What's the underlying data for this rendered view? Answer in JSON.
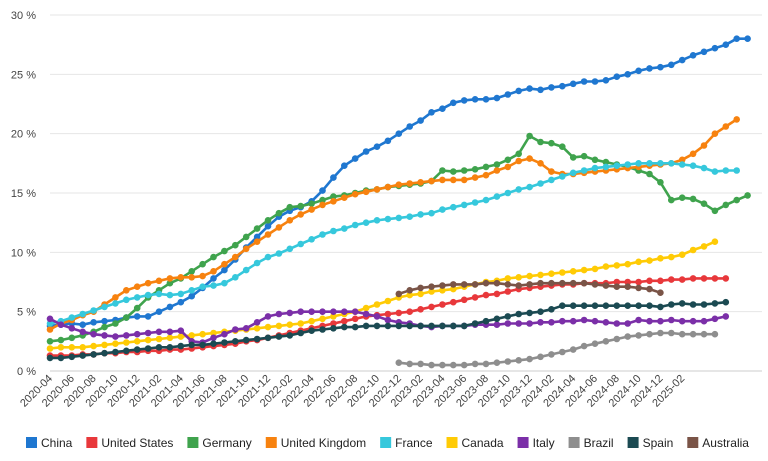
{
  "chart_data": {
    "type": "line",
    "title": "",
    "xlabel": "",
    "ylabel": "",
    "ylim": [
      0,
      30
    ],
    "y_ticks": [
      "0 %",
      "5 %",
      "10 %",
      "15 %",
      "20 %",
      "25 %",
      "30 %"
    ],
    "x_tick_labels": [
      "2020-04",
      "2020-06",
      "2020-08",
      "2020-10",
      "2020-12",
      "2021-02",
      "2021-04",
      "2021-06",
      "2021-08",
      "2021-10",
      "2021-12",
      "2022-02",
      "2022-04",
      "2022-06",
      "2022-08",
      "2022-10",
      "2022-12",
      "2023-02",
      "2023-04",
      "2023-06",
      "2023-08",
      "2023-10",
      "2023-12",
      "2024-02",
      "2024-04",
      "2024-06",
      "2024-08",
      "2024-10",
      "2024-12",
      "2025-02"
    ],
    "grid": "horizontal",
    "legend_position": "bottom",
    "series": [
      {
        "name": "China",
        "color": "#1f77d0",
        "start": "2020-04",
        "values": [
          3.8,
          3.9,
          4.0,
          3.9,
          4.1,
          4.2,
          4.3,
          4.5,
          4.6,
          4.6,
          5.0,
          5.4,
          5.8,
          6.3,
          7.0,
          7.8,
          8.5,
          9.4,
          10.4,
          11.3,
          12.2,
          13.0,
          13.5,
          13.8,
          14.3,
          15.2,
          16.3,
          17.3,
          17.9,
          18.5,
          18.9,
          19.4,
          20.0,
          20.6,
          21.1,
          21.8,
          22.1,
          22.6,
          22.8,
          22.9,
          22.9,
          23.0,
          23.3,
          23.6,
          23.8,
          23.7,
          23.9,
          24.0,
          24.2,
          24.4,
          24.4,
          24.5,
          24.8,
          25.0,
          25.3,
          25.5,
          25.6,
          25.8,
          26.2,
          26.6,
          26.9,
          27.2,
          27.5,
          28.0,
          28.0
        ]
      },
      {
        "name": "United States",
        "color": "#e8383b",
        "start": "2020-04",
        "values": [
          1.3,
          1.3,
          1.3,
          1.4,
          1.4,
          1.5,
          1.5,
          1.6,
          1.6,
          1.7,
          1.7,
          1.8,
          1.8,
          1.9,
          2.0,
          2.1,
          2.2,
          2.3,
          2.5,
          2.6,
          2.8,
          3.0,
          3.2,
          3.4,
          3.6,
          3.8,
          4.0,
          4.2,
          4.4,
          4.6,
          4.7,
          4.8,
          4.9,
          5.0,
          5.2,
          5.4,
          5.6,
          5.8,
          6.0,
          6.2,
          6.4,
          6.5,
          6.7,
          6.9,
          7.0,
          7.1,
          7.2,
          7.3,
          7.3,
          7.4,
          7.4,
          7.4,
          7.5,
          7.5,
          7.5,
          7.6,
          7.6,
          7.7,
          7.7,
          7.8,
          7.8,
          7.8,
          7.8
        ]
      },
      {
        "name": "Germany",
        "color": "#3fa34d",
        "start": "2020-04",
        "values": [
          2.5,
          2.6,
          2.8,
          3.0,
          3.3,
          3.7,
          4.0,
          4.5,
          5.3,
          6.2,
          6.8,
          7.4,
          7.8,
          8.4,
          9.0,
          9.6,
          10.1,
          10.6,
          11.3,
          12.0,
          12.7,
          13.3,
          13.8,
          13.9,
          14.1,
          14.4,
          14.7,
          14.8,
          15.0,
          15.2,
          15.3,
          15.5,
          15.6,
          15.7,
          15.8,
          16.0,
          16.9,
          16.8,
          16.9,
          17.0,
          17.2,
          17.4,
          17.8,
          18.3,
          19.8,
          19.3,
          19.2,
          18.9,
          18.0,
          18.1,
          17.8,
          17.6,
          17.4,
          17.2,
          16.9,
          16.6,
          15.9,
          14.4,
          14.6,
          14.5,
          14.1,
          13.5,
          14.0,
          14.4,
          14.8
        ]
      },
      {
        "name": "United Kingdom",
        "color": "#f7820f",
        "start": "2020-04",
        "values": [
          3.5,
          4.0,
          4.3,
          4.7,
          5.0,
          5.6,
          6.2,
          6.8,
          7.1,
          7.4,
          7.6,
          7.8,
          7.9,
          7.9,
          8.0,
          8.4,
          9.0,
          9.6,
          10.3,
          10.9,
          11.5,
          12.1,
          12.7,
          13.2,
          13.6,
          14.0,
          14.3,
          14.6,
          14.9,
          15.1,
          15.3,
          15.5,
          15.7,
          15.8,
          15.9,
          16.0,
          16.1,
          16.1,
          16.1,
          16.3,
          16.5,
          16.9,
          17.2,
          17.7,
          17.9,
          17.5,
          16.8,
          16.6,
          16.6,
          16.7,
          16.8,
          16.9,
          17.0,
          17.1,
          17.2,
          17.3,
          17.4,
          17.5,
          17.8,
          18.3,
          19.0,
          20.0,
          20.6,
          21.2
        ]
      },
      {
        "name": "France",
        "color": "#36c8dc",
        "start": "2020-04",
        "values": [
          4.0,
          4.2,
          4.5,
          4.8,
          5.1,
          5.4,
          5.7,
          6.0,
          6.2,
          6.4,
          6.5,
          6.4,
          6.5,
          6.8,
          7.1,
          7.2,
          7.4,
          7.9,
          8.5,
          9.1,
          9.6,
          9.9,
          10.3,
          10.7,
          11.1,
          11.5,
          11.8,
          12.0,
          12.3,
          12.5,
          12.7,
          12.8,
          12.9,
          13.0,
          13.2,
          13.3,
          13.6,
          13.8,
          14.0,
          14.2,
          14.4,
          14.7,
          15.0,
          15.3,
          15.5,
          15.8,
          16.1,
          16.4,
          16.7,
          16.9,
          17.1,
          17.2,
          17.3,
          17.4,
          17.5,
          17.5,
          17.5,
          17.5,
          17.4,
          17.3,
          17.1,
          16.8,
          16.9,
          16.9
        ]
      },
      {
        "name": "Canada",
        "color": "#ffcb05",
        "start": "2020-04",
        "values": [
          1.9,
          2.0,
          2.0,
          2.0,
          2.1,
          2.2,
          2.3,
          2.4,
          2.5,
          2.6,
          2.7,
          2.8,
          2.9,
          3.0,
          3.1,
          3.2,
          3.3,
          3.4,
          3.5,
          3.6,
          3.7,
          3.8,
          3.9,
          4.0,
          4.2,
          4.4,
          4.6,
          4.8,
          5.0,
          5.3,
          5.6,
          5.9,
          6.2,
          6.4,
          6.5,
          6.7,
          6.8,
          6.9,
          7.1,
          7.3,
          7.5,
          7.6,
          7.8,
          7.9,
          8.0,
          8.1,
          8.2,
          8.3,
          8.4,
          8.5,
          8.6,
          8.8,
          8.9,
          9.0,
          9.2,
          9.3,
          9.5,
          9.6,
          9.8,
          10.2,
          10.5,
          10.9
        ]
      },
      {
        "name": "Italy",
        "color": "#7b2fa8",
        "start": "2020-04",
        "values": [
          4.4,
          3.9,
          3.6,
          3.3,
          3.1,
          3.0,
          2.9,
          3.0,
          3.1,
          3.2,
          3.3,
          3.3,
          3.4,
          2.5,
          2.4,
          2.8,
          3.1,
          3.5,
          3.6,
          4.1,
          4.6,
          4.8,
          4.9,
          5.0,
          5.0,
          5.0,
          5.0,
          5.0,
          5.0,
          4.8,
          4.6,
          4.3,
          4.1,
          4.0,
          3.8,
          3.7,
          3.8,
          3.8,
          3.8,
          3.9,
          3.9,
          3.9,
          4.0,
          4.0,
          4.0,
          4.1,
          4.1,
          4.2,
          4.2,
          4.3,
          4.2,
          4.1,
          4.0,
          4.0,
          4.3,
          4.2,
          4.2,
          4.3,
          4.2,
          4.2,
          4.2,
          4.4,
          4.6
        ]
      },
      {
        "name": "Brazil",
        "color": "#8e8e8e",
        "start": "2022-12",
        "values": [
          0.7,
          0.6,
          0.6,
          0.5,
          0.5,
          0.5,
          0.5,
          0.6,
          0.6,
          0.7,
          0.8,
          0.9,
          1.0,
          1.2,
          1.4,
          1.6,
          1.8,
          2.1,
          2.3,
          2.5,
          2.7,
          2.9,
          3.0,
          3.1,
          3.2,
          3.2,
          3.1,
          3.1,
          3.1,
          3.1
        ]
      },
      {
        "name": "Spain",
        "color": "#1b4a52",
        "start": "2020-04",
        "values": [
          1.1,
          1.1,
          1.2,
          1.3,
          1.4,
          1.5,
          1.6,
          1.7,
          1.8,
          1.9,
          2.0,
          2.0,
          2.1,
          2.2,
          2.2,
          2.3,
          2.4,
          2.5,
          2.6,
          2.7,
          2.8,
          2.9,
          3.0,
          3.2,
          3.4,
          3.5,
          3.6,
          3.7,
          3.7,
          3.8,
          3.8,
          3.8,
          3.8,
          3.8,
          3.8,
          3.8,
          3.8,
          3.8,
          3.8,
          4.0,
          4.2,
          4.4,
          4.6,
          4.8,
          4.9,
          5.0,
          5.2,
          5.5,
          5.5,
          5.5,
          5.5,
          5.5,
          5.5,
          5.5,
          5.5,
          5.5,
          5.4,
          5.6,
          5.7,
          5.6,
          5.6,
          5.7,
          5.8
        ]
      },
      {
        "name": "Australia",
        "color": "#7a5447",
        "start": "2022-12",
        "values": [
          6.5,
          6.8,
          7.0,
          7.1,
          7.2,
          7.3,
          7.3,
          7.3,
          7.4,
          7.4,
          7.3,
          7.2,
          7.3,
          7.4,
          7.4,
          7.4,
          7.4,
          7.4,
          7.3,
          7.2,
          7.1,
          7.1,
          7.0,
          6.9,
          6.6
        ]
      }
    ]
  }
}
